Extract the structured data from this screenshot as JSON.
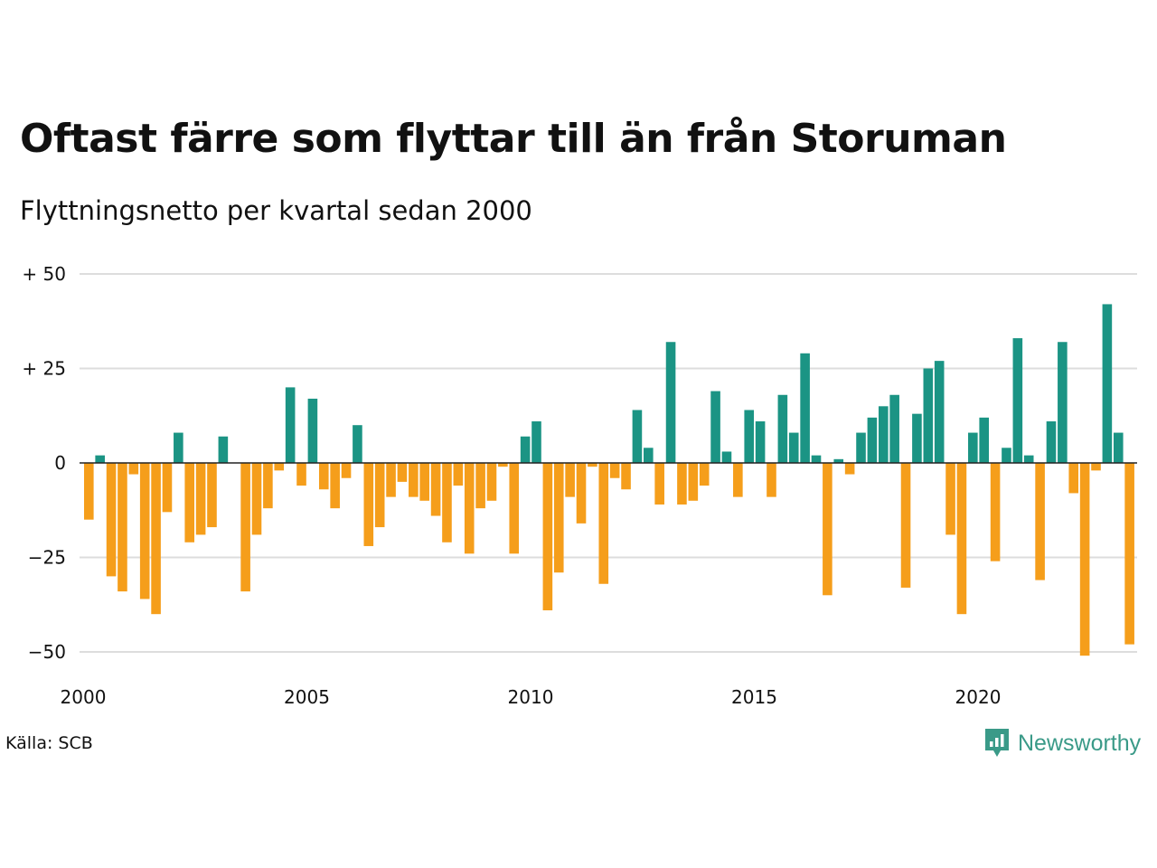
{
  "header": {
    "title": "Oftast färre som flyttar till än från Storuman",
    "subtitle": "Flyttningsnetto per kvartal sedan 2000"
  },
  "footer": {
    "source": "Källa: SCB",
    "brand": "Newsworthy"
  },
  "colors": {
    "positive": "#1b9484",
    "negative": "#f59e1b",
    "grid": "#dddddd",
    "brand": "#3a9a88"
  },
  "chart_data": {
    "type": "bar",
    "title": "Oftast färre som flyttar till än från Storuman",
    "subtitle": "Flyttningsnetto per kvartal sedan 2000",
    "xlabel": "",
    "ylabel": "",
    "ylim": [
      -50,
      50
    ],
    "grid": true,
    "legend": "none",
    "y_ticks": [
      {
        "value": 50,
        "label": "+ 50"
      },
      {
        "value": 25,
        "label": "+ 25"
      },
      {
        "value": 0,
        "label": "0"
      },
      {
        "value": -25,
        "label": "−25"
      },
      {
        "value": -50,
        "label": "−50"
      }
    ],
    "x_ticks": [
      {
        "year": 2000,
        "label": "2000"
      },
      {
        "year": 2005,
        "label": "2005"
      },
      {
        "year": 2010,
        "label": "2010"
      },
      {
        "year": 2015,
        "label": "2015"
      },
      {
        "year": 2020,
        "label": "2020"
      }
    ],
    "x_start": "2000 Q1",
    "values": [
      -15,
      2,
      -30,
      -34,
      -3,
      -36,
      -40,
      -13,
      8,
      -21,
      -19,
      -17,
      7,
      0,
      -34,
      -19,
      -12,
      -2,
      20,
      -6,
      17,
      -7,
      -12,
      -4,
      10,
      -22,
      -17,
      -9,
      -5,
      -9,
      -10,
      -14,
      -21,
      -6,
      -24,
      -12,
      -10,
      -1,
      -24,
      7,
      11,
      -39,
      -29,
      -9,
      -16,
      -1,
      -32,
      -4,
      -7,
      14,
      4,
      -11,
      32,
      -11,
      -10,
      -6,
      19,
      3,
      -9,
      14,
      11,
      -9,
      18,
      8,
      29,
      2,
      -35,
      1,
      -3,
      8,
      12,
      15,
      18,
      -33,
      13,
      25,
      27,
      -19,
      -40,
      8,
      12,
      -26,
      4,
      33,
      2,
      -31,
      11,
      32,
      -8,
      -51,
      -2,
      42,
      8,
      -48
    ]
  }
}
